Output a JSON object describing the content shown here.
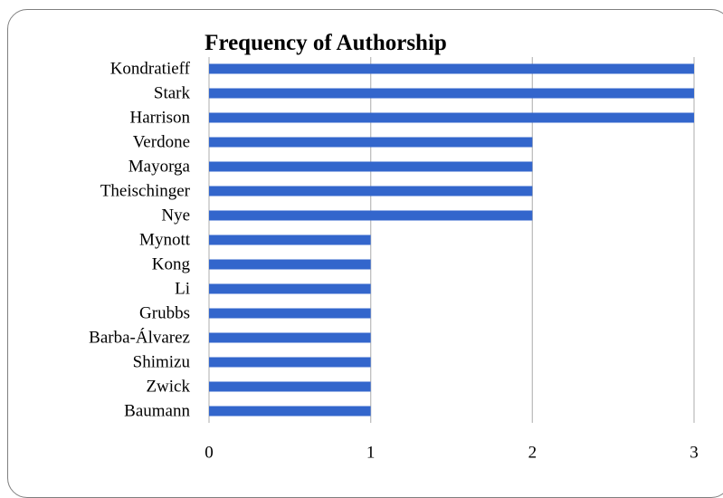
{
  "chart_data": {
    "type": "bar",
    "orientation": "horizontal",
    "title": "Frequency of Authorship",
    "xlabel": "",
    "ylabel": "",
    "categories": [
      "Kondratieff",
      "Stark",
      "Harrison",
      "Verdone",
      "Mayorga",
      "Theischinger",
      "Nye",
      "Mynott",
      "Kong",
      "Li",
      "Grubbs",
      "Barba-Álvarez",
      "Shimizu",
      "Zwick",
      "Baumann"
    ],
    "values": [
      3,
      3,
      3,
      2,
      2,
      2,
      2,
      1,
      1,
      1,
      1,
      1,
      1,
      1,
      1
    ],
    "xlim": [
      0,
      3
    ],
    "xticks": [
      "0",
      "1",
      "2",
      "3"
    ],
    "grid": true,
    "legend": "none",
    "bar_color": "#3366cc",
    "grid_color": "#bfbfbf"
  }
}
